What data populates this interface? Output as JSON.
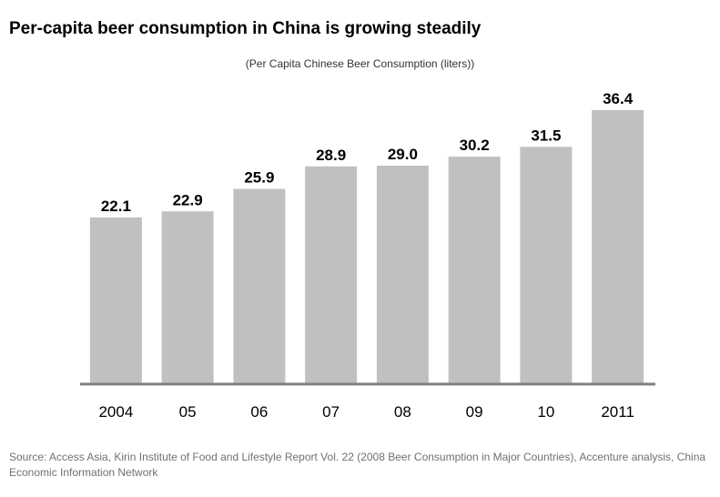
{
  "title": "Per-capita beer consumption in China is growing steadily",
  "subtitle": "(Per Capita Chinese Beer Consumption (liters))",
  "source": "Source: Access Asia, Kirin Institute of Food and Lifestyle Report Vol. 22 (2008 Beer Consumption in Major Countries), Accenture analysis, China Economic Information Network",
  "colors": {
    "bar": "#c0c0c0",
    "axis": "#808080",
    "text": "#000000"
  },
  "chart_data": {
    "type": "bar",
    "title": "Per-capita beer consumption in China is growing steadily",
    "subtitle": "(Per Capita Chinese Beer Consumption (liters))",
    "categories": [
      "2004",
      "05",
      "06",
      "07",
      "08",
      "09",
      "10",
      "2011"
    ],
    "values": [
      22.1,
      22.9,
      25.9,
      28.9,
      29.0,
      30.2,
      31.5,
      36.4
    ],
    "value_labels": [
      "22.1",
      "22.9",
      "25.9",
      "28.9",
      "29.0",
      "30.2",
      "31.5",
      "36.4"
    ],
    "ylim": [
      0,
      36.4
    ],
    "grid": false,
    "legend": false
  }
}
